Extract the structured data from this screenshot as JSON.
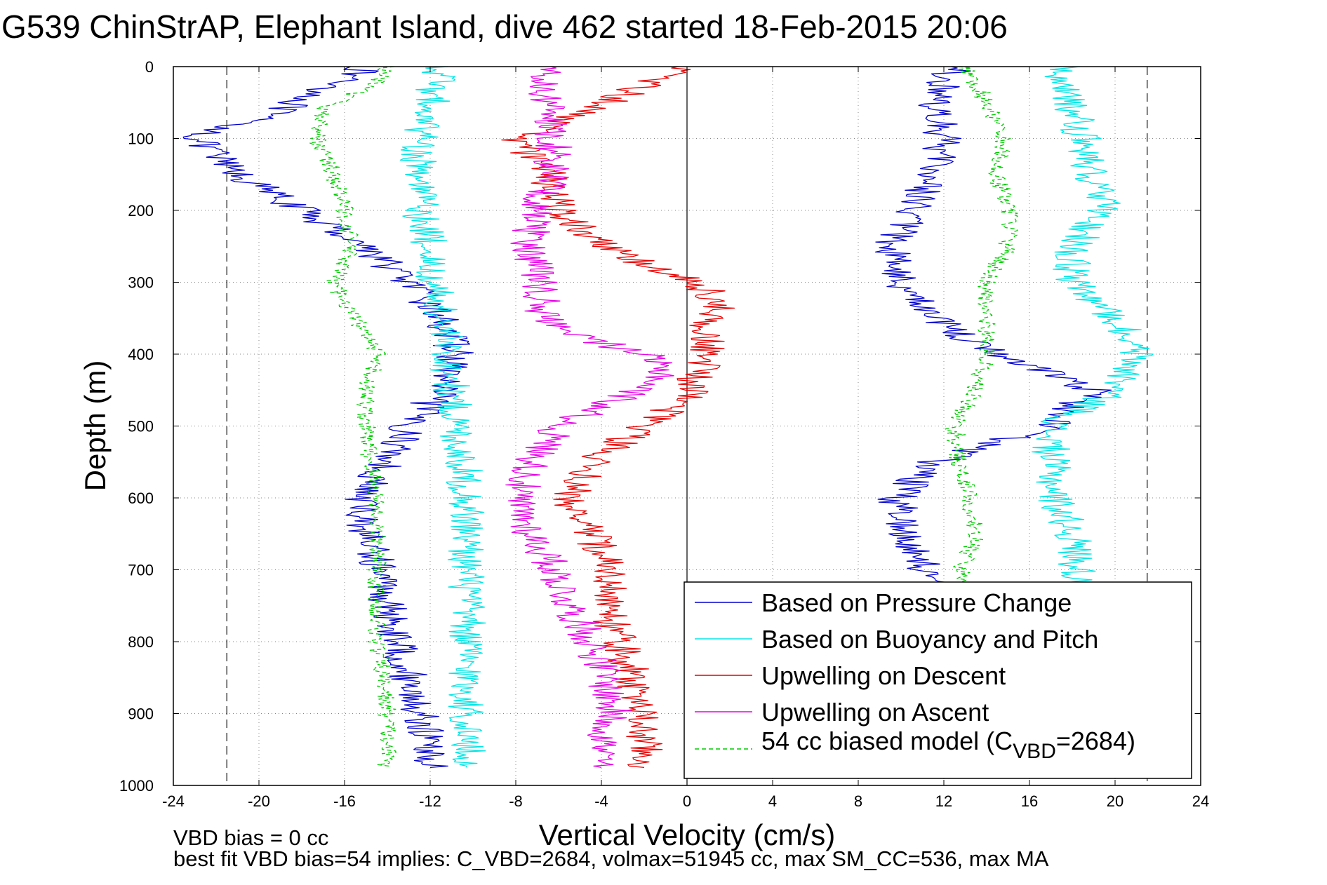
{
  "chart_data": {
    "type": "line",
    "title": "G539 ChinStrAP, Elephant Island, dive 462 started 18-Feb-2015 20:06",
    "xlabel": "Vertical Velocity (cm/s)",
    "ylabel": "Depth (m)",
    "xlim": [
      -24,
      24
    ],
    "ylim": [
      0,
      1000
    ],
    "y_reversed": true,
    "grid": true,
    "x_ticks": [
      -24,
      -20,
      -16,
      -12,
      -8,
      -4,
      0,
      4,
      8,
      12,
      16,
      20,
      24
    ],
    "x_tick_labels": [
      "-24",
      "-20",
      "-16",
      "-12",
      "-8",
      "-4",
      "0",
      "4",
      "8",
      "12",
      "16",
      "20",
      "24"
    ],
    "y_ticks": [
      0,
      100,
      200,
      300,
      400,
      500,
      600,
      700,
      800,
      900,
      1000
    ],
    "y_tick_labels": [
      "0",
      "100",
      "200",
      "300",
      "400",
      "500",
      "600",
      "700",
      "800",
      "900",
      "1000"
    ],
    "legend_position": "bottom-right",
    "reference_lines": [
      -21.5,
      21.5
    ],
    "annotations": [
      "VBD bias = 0 cc",
      "best fit VBD bias=54 implies: C_VBD=2684, volmax=51945 cc, max SM_CC=536, max MA"
    ],
    "legend": [
      {
        "text": "Based on Pressure Change"
      },
      {
        "text": "Based on Buoyancy and Pitch"
      },
      {
        "text": "Upwelling on Descent"
      },
      {
        "text": "Upwelling on Ascent"
      },
      {
        "text": "54 cc biased model (C",
        "sub": "VBD",
        "tail": "=2684)"
      }
    ],
    "series": [
      {
        "name": "Based on Pressure Change (descent)",
        "color": "#0000cc",
        "style": "solid",
        "depth": [
          0,
          20,
          60,
          100,
          150,
          200,
          250,
          300,
          350,
          400,
          450,
          500,
          550,
          600,
          650,
          700,
          750,
          800,
          850,
          900,
          950,
          975
        ],
        "velocity": [
          -15,
          -16,
          -19,
          -23,
          -21,
          -18,
          -15,
          -13,
          -11.5,
          -10.8,
          -11.5,
          -13,
          -14,
          -15.3,
          -15,
          -14.3,
          -14,
          -13.5,
          -13,
          -12.5,
          -12,
          -12
        ]
      },
      {
        "name": "Based on Pressure Change (ascent)",
        "color": "#0000cc",
        "style": "solid",
        "depth": [
          0,
          50,
          100,
          150,
          200,
          250,
          300,
          350,
          400,
          450,
          500,
          550,
          600,
          650,
          700,
          720
        ],
        "velocity": [
          12.5,
          11.5,
          12,
          11.5,
          10.5,
          9.5,
          10,
          11.5,
          14.5,
          19,
          17,
          11.5,
          9.8,
          10.2,
          11.2,
          11.5
        ]
      },
      {
        "name": "Based on Buoyancy and Pitch (descent)",
        "color": "#00e5e5",
        "style": "solid",
        "depth": [
          0,
          50,
          100,
          150,
          200,
          250,
          300,
          350,
          400,
          450,
          500,
          550,
          600,
          650,
          700,
          750,
          800,
          850,
          900,
          950,
          975
        ],
        "velocity": [
          -11.5,
          -12,
          -12.5,
          -12.5,
          -12.5,
          -12,
          -11.8,
          -11.5,
          -11.2,
          -11,
          -10.8,
          -10.5,
          -10.3,
          -10.3,
          -10.3,
          -10.3,
          -10.3,
          -10.3,
          -10.3,
          -10.3,
          -10.3
        ]
      },
      {
        "name": "Based on Buoyancy and Pitch (ascent)",
        "color": "#00e5e5",
        "style": "solid",
        "depth": [
          0,
          50,
          100,
          150,
          200,
          250,
          300,
          350,
          400,
          450,
          500,
          550,
          600,
          650,
          700,
          720
        ],
        "velocity": [
          17.5,
          17.8,
          18.5,
          18.8,
          19.5,
          18,
          18,
          20,
          21,
          20,
          17,
          17,
          17.2,
          18,
          18.3,
          18.3
        ]
      },
      {
        "name": "Upwelling on Descent",
        "color": "#e60000",
        "style": "solid",
        "depth": [
          0,
          40,
          100,
          150,
          200,
          250,
          280,
          300,
          330,
          360,
          400,
          430,
          460,
          500,
          550,
          600,
          650,
          700,
          750,
          800,
          850,
          900,
          950,
          975
        ],
        "velocity": [
          0,
          -3,
          -8,
          -6.5,
          -6,
          -4,
          -1.5,
          0.5,
          1.5,
          1,
          1,
          0.5,
          0,
          -2,
          -4.5,
          -5.5,
          -4.5,
          -3.5,
          -3.8,
          -3.2,
          -2.5,
          -2.2,
          -2,
          -2
        ]
      },
      {
        "name": "Upwelling on Ascent",
        "color": "#e600e6",
        "style": "solid",
        "depth": [
          0,
          50,
          100,
          150,
          200,
          250,
          300,
          350,
          380,
          400,
          430,
          460,
          500,
          550,
          600,
          650,
          700,
          750,
          800,
          850,
          900,
          950,
          975
        ],
        "velocity": [
          -6.5,
          -6.5,
          -6.2,
          -6.3,
          -7,
          -7.5,
          -6.8,
          -6.8,
          -4.5,
          -2,
          -1,
          -3,
          -6,
          -7.2,
          -8,
          -7.3,
          -6.2,
          -5.5,
          -4.5,
          -3.8,
          -3.5,
          -4,
          -4
        ]
      },
      {
        "name": "54 cc biased model (C_VBD=2684) descent",
        "color": "#00cc00",
        "style": "dashed",
        "depth": [
          0,
          20,
          60,
          100,
          150,
          200,
          250,
          300,
          350,
          400,
          450,
          500,
          550,
          600,
          650,
          700,
          750,
          800,
          850,
          900,
          950,
          975
        ],
        "velocity": [
          -14,
          -14.5,
          -17,
          -17.3,
          -16.5,
          -16,
          -15.7,
          -16.5,
          -15.5,
          -14.5,
          -15,
          -15,
          -14.8,
          -14.5,
          -14.5,
          -14.5,
          -14.5,
          -14.5,
          -14.2,
          -14,
          -14,
          -14
        ]
      },
      {
        "name": "54 cc biased model (C_VBD=2684) ascent",
        "color": "#00cc00",
        "style": "dashed",
        "depth": [
          0,
          50,
          100,
          150,
          200,
          250,
          300,
          350,
          400,
          450,
          500,
          550,
          600,
          650,
          700,
          720
        ],
        "velocity": [
          13,
          14,
          14.8,
          14.5,
          15,
          15,
          14,
          14,
          14,
          13.5,
          12.5,
          12.7,
          13.2,
          13.5,
          12.8,
          12.8
        ]
      }
    ]
  }
}
